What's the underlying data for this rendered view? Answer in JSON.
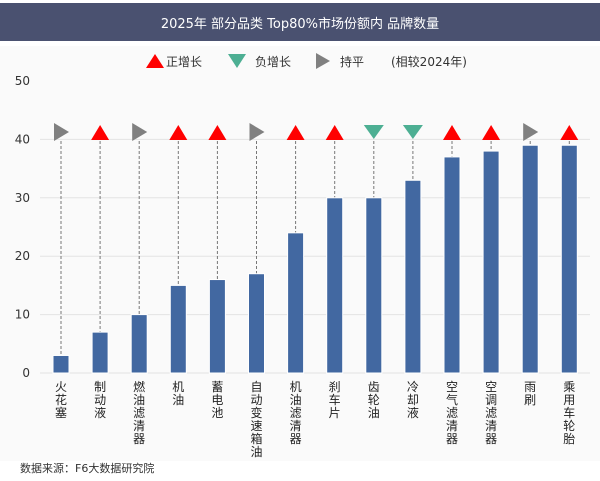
{
  "title": "2025年 部分品类 Top80%市场份额内 品牌数量",
  "legend": {
    "up": "正增长",
    "down": "负增长",
    "flat": "持平",
    "note": "(相较2024年)"
  },
  "source": "数据来源：F6大数据研究院",
  "colors": {
    "bar": "#4268a1",
    "up": "#ff0000",
    "down": "#4daf93",
    "flat": "#808080",
    "title_bg": "#4a5170"
  },
  "chart_data": {
    "type": "bar",
    "title": "2025年 部分品类 Top80%市场份额内 品牌数量",
    "categories": [
      "火花塞",
      "制动液",
      "燃油滤清器",
      "机油",
      "蓄电池",
      "自动变速箱油",
      "机油滤清器",
      "刹车片",
      "齿轮油",
      "冷却液",
      "空气滤清器",
      "空调滤清器",
      "雨刷",
      "乘用车轮胎"
    ],
    "values": [
      3,
      7,
      10,
      15,
      16,
      17,
      24,
      30,
      30,
      33,
      37,
      38,
      39,
      39
    ],
    "trend": [
      "flat",
      "up",
      "flat",
      "up",
      "up",
      "flat",
      "up",
      "up",
      "down",
      "down",
      "up",
      "up",
      "flat",
      "up"
    ],
    "yticks": [
      0,
      10,
      20,
      30,
      40,
      50
    ],
    "ylim": [
      0,
      50
    ],
    "grid": true,
    "legend_position": "top"
  }
}
